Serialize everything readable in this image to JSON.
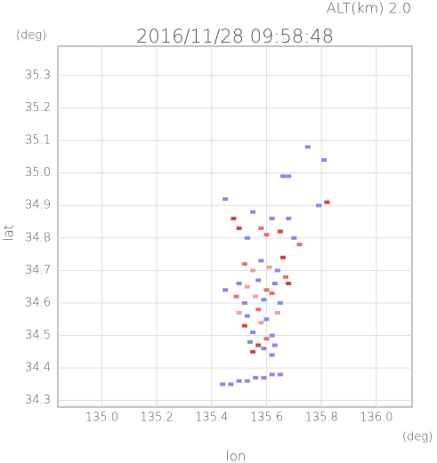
{
  "chart_data": {
    "type": "scatter",
    "title": "2016/11/28 09:58:48",
    "subtitle": "ALT(km) 2.0",
    "y_unit": "(deg)",
    "x_unit": "(deg)",
    "xlabel": "lon",
    "ylabel": "lat",
    "xlim": [
      134.84,
      136.13
    ],
    "ylim": [
      34.28,
      35.39
    ],
    "xticks": [
      {
        "value": 135.0,
        "label": "135.0"
      },
      135.2,
      135.4,
      135.6,
      135.8,
      {
        "value": 136.0,
        "label": "136.0"
      }
    ],
    "yticks": [
      35.3,
      35.2,
      35.1,
      {
        "value": 35.0,
        "label": "35.0"
      },
      34.9,
      34.8,
      34.7,
      34.6,
      34.5,
      34.4,
      34.3
    ],
    "grid": true,
    "x": [
      135.75,
      135.81,
      135.68,
      135.66,
      135.45,
      135.48,
      135.55,
      135.58,
      135.62,
      135.65,
      135.68,
      135.72,
      135.79,
      135.82,
      135.5,
      135.53,
      135.6,
      135.66,
      135.7,
      135.52,
      135.55,
      135.58,
      135.61,
      135.64,
      135.67,
      135.5,
      135.53,
      135.57,
      135.6,
      135.63,
      135.45,
      135.49,
      135.52,
      135.56,
      135.59,
      135.62,
      135.65,
      135.68,
      135.5,
      135.53,
      135.57,
      135.6,
      135.64,
      135.52,
      135.55,
      135.58,
      135.62,
      135.54,
      135.57,
      135.6,
      135.63,
      135.55,
      135.59,
      135.62,
      135.44,
      135.47,
      135.5,
      135.53,
      135.56,
      135.59,
      135.62,
      135.65
    ],
    "values": [
      35.08,
      35.04,
      34.99,
      34.99,
      34.92,
      34.86,
      34.88,
      34.83,
      34.86,
      34.82,
      34.86,
      34.78,
      34.9,
      34.91,
      34.83,
      34.8,
      34.81,
      34.74,
      34.8,
      34.72,
      34.7,
      34.73,
      34.71,
      34.7,
      34.68,
      34.66,
      34.65,
      34.67,
      34.64,
      34.66,
      34.64,
      34.62,
      34.6,
      34.62,
      34.61,
      34.63,
      34.6,
      34.66,
      34.57,
      34.56,
      34.58,
      34.55,
      34.57,
      34.53,
      34.51,
      34.54,
      34.5,
      34.48,
      34.47,
      34.49,
      34.47,
      34.45,
      34.46,
      34.44,
      34.35,
      34.35,
      34.36,
      34.36,
      34.37,
      34.37,
      34.38,
      34.38
    ],
    "colors": [
      "#8888ee",
      "#8888ee",
      "#8888ee",
      "#8888ee",
      "#8888ee",
      "#d84040",
      "#8888ee",
      "#e87070",
      "#8888ee",
      "#d84040",
      "#8888ee",
      "#e87070",
      "#8888ee",
      "#d84040",
      "#d84040",
      "#8888ee",
      "#e87070",
      "#d84040",
      "#8888ee",
      "#e87070",
      "#f0a0a0",
      "#8888ee",
      "#f0a0a0",
      "#8888ee",
      "#e87070",
      "#8888ee",
      "#f0a0a0",
      "#8888ee",
      "#e87070",
      "#8888ee",
      "#8888ee",
      "#e87070",
      "#8888ee",
      "#f0a0a0",
      "#8888ee",
      "#e87070",
      "#8888ee",
      "#d84040",
      "#f0a0a0",
      "#8888ee",
      "#e87070",
      "#8888ee",
      "#f0a0a0",
      "#d84040",
      "#8888ee",
      "#f0a0a0",
      "#8888ee",
      "#8888ee",
      "#d84040",
      "#e87070",
      "#8888ee",
      "#d84040",
      "#8888ee",
      "#8888ee",
      "#8888ee",
      "#8888ee",
      "#8888ee",
      "#8888ee",
      "#8888ee",
      "#8888ee",
      "#8888ee",
      "#8888ee"
    ]
  }
}
